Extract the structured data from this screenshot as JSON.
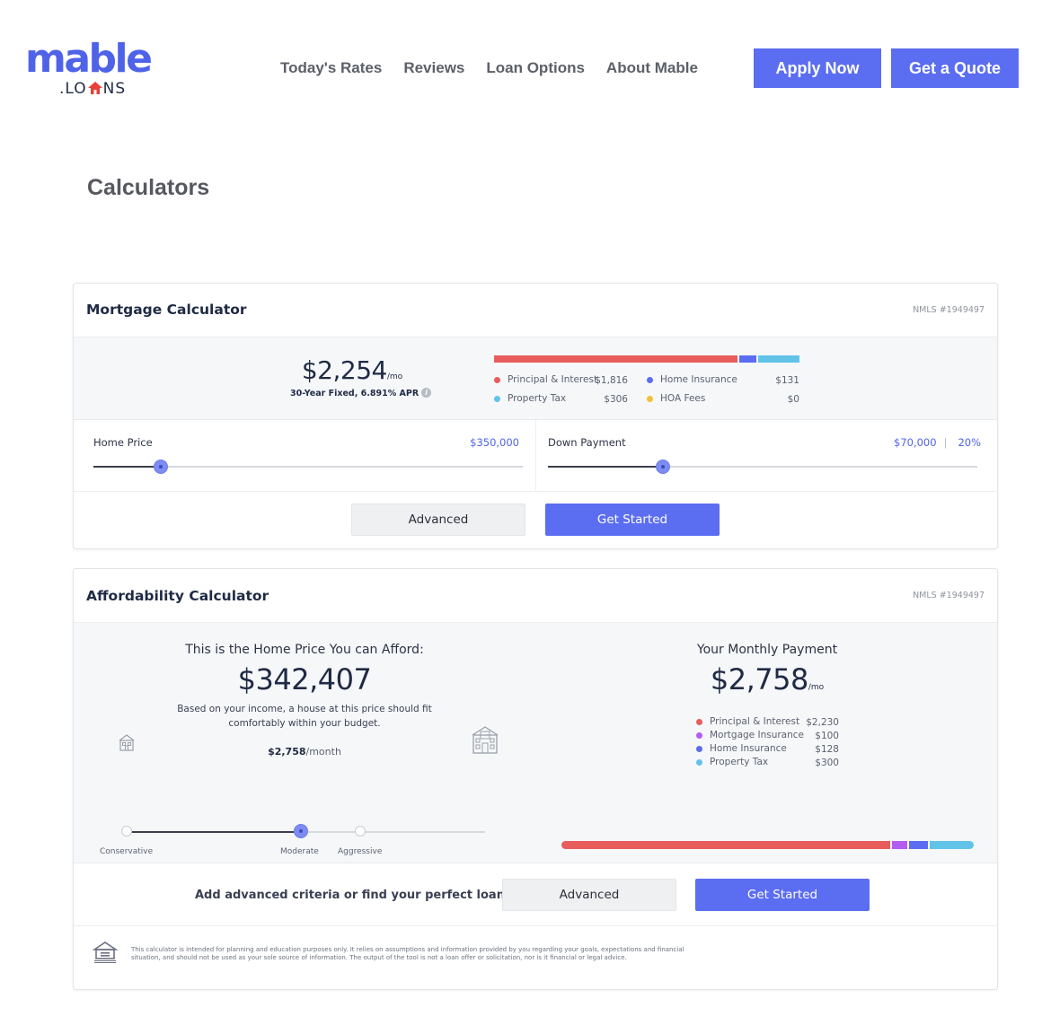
{
  "brand": {
    "logo_main": "mable",
    "logo_sub": ".LO NS",
    "logo_sub_prefix": ".LO",
    "logo_sub_suffix": "NS"
  },
  "nav": {
    "items": [
      "Today's Rates",
      "Reviews",
      "Loan Options",
      "About Mable"
    ]
  },
  "header_buttons": {
    "apply": "Apply Now",
    "quote": "Get a Quote"
  },
  "page_title": "Calculators",
  "colors": {
    "accent": "#5b6df0",
    "principal": "#e85c5c",
    "insurance": "#5b6df0",
    "tax": "#62c3e8",
    "hoa": "#f2c035",
    "mortgage_insurance": "#b45cf0"
  },
  "mortgage": {
    "title": "Mortgage Calculator",
    "nmls": "NMLS #1949497",
    "amount": "$2,254",
    "per": "/mo",
    "subtitle": "30-Year Fixed, 6.891% APR",
    "info_icon": "info-icon",
    "legend": [
      {
        "label": "Principal & Interest",
        "value": "$1,816",
        "color": "#e85c5c"
      },
      {
        "label": "Home Insurance",
        "value": "$131",
        "color": "#5b6df0"
      },
      {
        "label": "Property Tax",
        "value": "$306",
        "color": "#62c3e8"
      },
      {
        "label": "HOA Fees",
        "value": "$0",
        "color": "#f2c035"
      }
    ],
    "bar_fractions": {
      "principal": 0.806,
      "insurance": 0.058,
      "tax": 0.136,
      "hoa": 0
    },
    "home_price": {
      "label": "Home Price",
      "value": "$350,000",
      "slider_fraction": 0.157
    },
    "down_payment": {
      "label": "Down Payment",
      "value": "$70,000",
      "percent": "20%",
      "slider_fraction": 0.268
    },
    "advanced": "Advanced",
    "get_started": "Get Started"
  },
  "affordability": {
    "title": "Affordability Calculator",
    "nmls": "NMLS #1949497",
    "left_title": "This is the Home Price You can Afford:",
    "price": "$342,407",
    "desc": "Based on your income, a house at this price should fit comfortably within your budget.",
    "monthly_value": "$2,758",
    "monthly_suffix": "/month",
    "stops": [
      "Conservative",
      "Moderate",
      "Aggressive"
    ],
    "selected_stop": "Moderate",
    "right_title": "Your Monthly Payment",
    "payment": "$2,758",
    "payment_per": "/mo",
    "legend": [
      {
        "label": "Principal & Interest",
        "value": "$2,230",
        "color": "#e85c5c"
      },
      {
        "label": "Mortgage Insurance",
        "value": "$100",
        "color": "#b45cf0"
      },
      {
        "label": "Home Insurance",
        "value": "$128",
        "color": "#5b6df0"
      },
      {
        "label": "Property Tax",
        "value": "$300",
        "color": "#62c3e8"
      }
    ],
    "bar_fractions": {
      "principal": 0.808,
      "mortgage_insurance": 0.036,
      "insurance": 0.046,
      "tax": 0.109
    },
    "cta": "Add advanced criteria or find your perfect loan.",
    "advanced": "Advanced",
    "get_started": "Get Started",
    "disclaimer": "This calculator is intended for planning and education purposes only. It relies on assumptions and information provided by you regarding your goals, expectations and financial situation, and should not be used as your sole source of information. The output of the tool is not a loan offer or solicitation, nor is it financial or legal advice.",
    "footer_icon": "equal-housing-icon"
  }
}
